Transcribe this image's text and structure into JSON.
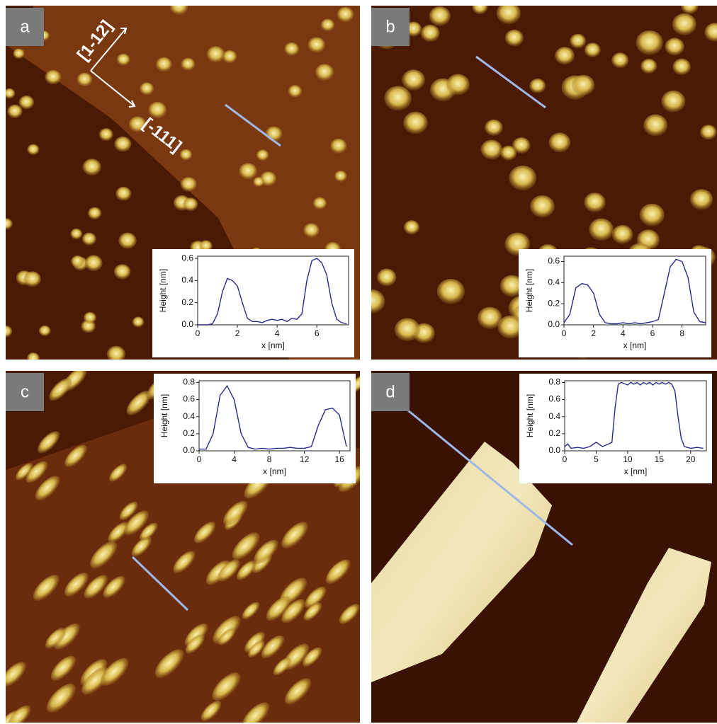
{
  "chart_data": [
    {
      "type": "line",
      "panel_label": "a",
      "annotations": [
        "[1-12]",
        "[-111]"
      ],
      "x_label": "x [nm]",
      "y_label": "Height [nm]",
      "color": "#2a2a8a",
      "x": [
        0,
        0.25,
        0.5,
        0.75,
        1,
        1.25,
        1.5,
        1.75,
        2,
        2.25,
        2.5,
        2.75,
        3,
        3.25,
        3.5,
        3.75,
        4,
        4.25,
        4.5,
        4.75,
        5,
        5.25,
        5.5,
        5.75,
        6,
        6.25,
        6.5,
        6.75,
        7,
        7.25,
        7.5
      ],
      "values": [
        0,
        0,
        0,
        0.01,
        0.1,
        0.3,
        0.42,
        0.4,
        0.35,
        0.2,
        0.06,
        0.03,
        0.03,
        0.02,
        0.04,
        0.05,
        0.04,
        0.05,
        0.03,
        0.06,
        0.05,
        0.1,
        0.4,
        0.58,
        0.6,
        0.56,
        0.45,
        0.2,
        0.05,
        0.02,
        0.01
      ],
      "xlim": [
        0,
        7.6
      ],
      "ylim": [
        0,
        0.62
      ],
      "xticks": [
        0,
        2,
        4,
        6
      ],
      "yticks": [
        {
          "value": 0,
          "label": "0.0"
        },
        0.2,
        0.4,
        0.6
      ]
    },
    {
      "type": "line",
      "panel_label": "b",
      "x_label": "x [nm]",
      "y_label": "Height [nm]",
      "color": "#2a2a8a",
      "x": [
        0,
        0.4,
        0.8,
        1.2,
        1.6,
        2,
        2.4,
        2.8,
        3.2,
        3.6,
        4,
        4.4,
        4.8,
        5.2,
        5.6,
        6,
        6.4,
        6.8,
        7.2,
        7.6,
        8,
        8.4,
        8.8,
        9.2,
        9.6
      ],
      "values": [
        0.02,
        0.1,
        0.35,
        0.39,
        0.38,
        0.3,
        0.1,
        0.02,
        0.01,
        0.01,
        0.02,
        0.01,
        0.02,
        0.01,
        0.02,
        0.03,
        0.05,
        0.3,
        0.55,
        0.62,
        0.6,
        0.45,
        0.12,
        0.03,
        0.02
      ],
      "xlim": [
        0,
        9.6
      ],
      "ylim": [
        0,
        0.65
      ],
      "xticks": [
        0,
        2,
        4,
        6,
        8
      ],
      "yticks": [
        {
          "value": 0,
          "label": "0.0"
        },
        0.2,
        0.4,
        0.6
      ]
    },
    {
      "type": "line",
      "panel_label": "c",
      "x_label": "x [nm]",
      "y_label": "Height [nm]",
      "color": "#2a2a8a",
      "x": [
        0,
        0.8,
        1.6,
        2.4,
        3.2,
        4,
        4.8,
        5.6,
        6.4,
        7.2,
        8,
        8.8,
        9.6,
        10.4,
        11.2,
        12,
        12.8,
        13.6,
        14.4,
        15.2,
        16,
        16.8
      ],
      "values": [
        0.02,
        0.02,
        0.2,
        0.65,
        0.76,
        0.6,
        0.2,
        0.04,
        0.02,
        0.03,
        0.02,
        0.03,
        0.03,
        0.04,
        0.03,
        0.03,
        0.05,
        0.3,
        0.48,
        0.5,
        0.42,
        0.05
      ],
      "xlim": [
        0,
        17.2
      ],
      "ylim": [
        0,
        0.82
      ],
      "xticks": [
        0,
        4,
        8,
        12,
        16
      ],
      "yticks": [
        {
          "value": 0,
          "label": "0.0"
        },
        0.2,
        0.4,
        0.6,
        0.8
      ]
    },
    {
      "type": "line",
      "panel_label": "d",
      "x_label": "x [nm]",
      "y_label": "Height [nm]",
      "color": "#2a2a8a",
      "x": [
        0,
        0.5,
        1,
        2,
        3,
        4,
        5,
        6,
        7,
        7.5,
        8,
        8.5,
        9,
        10,
        10.5,
        11,
        11.5,
        12,
        12.5,
        13,
        13.5,
        14,
        14.5,
        15,
        15.5,
        16,
        16.5,
        17,
        17.5,
        18,
        18.5,
        19,
        20,
        21,
        22
      ],
      "values": [
        0.05,
        0.08,
        0.03,
        0.04,
        0.03,
        0.05,
        0.1,
        0.05,
        0.08,
        0.1,
        0.5,
        0.78,
        0.8,
        0.77,
        0.8,
        0.78,
        0.8,
        0.77,
        0.8,
        0.78,
        0.8,
        0.77,
        0.8,
        0.78,
        0.8,
        0.78,
        0.8,
        0.78,
        0.7,
        0.4,
        0.15,
        0.05,
        0.03,
        0.04,
        0.03
      ],
      "xlim": [
        0,
        22.5
      ],
      "ylim": [
        0,
        0.82
      ],
      "xticks": [
        0,
        5,
        10,
        15,
        20
      ],
      "yticks": [
        {
          "value": 0,
          "label": "0.0"
        },
        0.2,
        0.4,
        0.6,
        0.8
      ]
    }
  ]
}
